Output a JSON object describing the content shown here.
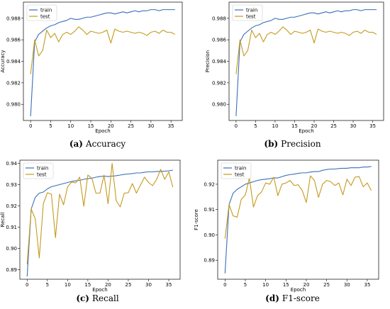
{
  "chart_data": [
    {
      "type": "line",
      "panel_label": "(a)",
      "caption": "Accuracy",
      "xlabel": "Epoch",
      "ylabel": "Accuracy",
      "xlim": [
        -1.8,
        37.8
      ],
      "ylim": [
        0.9785,
        0.9895
      ],
      "xticks": [
        0,
        5,
        10,
        15,
        20,
        25,
        30,
        35
      ],
      "yticks": [
        0.98,
        0.982,
        0.984,
        0.986,
        0.988
      ],
      "ytick_labels": [
        "0.980",
        "0.982",
        "0.984",
        "0.986",
        "0.988"
      ],
      "legend": "top-left",
      "grid": false,
      "x": [
        0,
        1,
        2,
        3,
        4,
        5,
        6,
        7,
        8,
        9,
        10,
        11,
        12,
        13,
        14,
        15,
        16,
        17,
        18,
        19,
        20,
        21,
        22,
        23,
        24,
        25,
        26,
        27,
        28,
        29,
        30,
        31,
        32,
        33,
        34,
        35,
        36
      ],
      "series": [
        {
          "name": "train",
          "color": "#3b6fb6",
          "values": [
            0.9789,
            0.9858,
            0.9865,
            0.9868,
            0.9871,
            0.9873,
            0.9874,
            0.9876,
            0.9877,
            0.9878,
            0.988,
            0.9879,
            0.9879,
            0.988,
            0.9881,
            0.9881,
            0.9882,
            0.9883,
            0.9884,
            0.9885,
            0.9885,
            0.9884,
            0.9885,
            0.9886,
            0.9885,
            0.9886,
            0.9887,
            0.9886,
            0.9887,
            0.9887,
            0.9888,
            0.9888,
            0.9887,
            0.9888,
            0.9888,
            0.9888,
            0.9888
          ]
        },
        {
          "name": "test",
          "color": "#c49a1f",
          "values": [
            0.9828,
            0.986,
            0.9845,
            0.985,
            0.9869,
            0.9862,
            0.9866,
            0.9858,
            0.9865,
            0.9867,
            0.9865,
            0.9868,
            0.9872,
            0.9869,
            0.9865,
            0.9868,
            0.9867,
            0.9866,
            0.9867,
            0.9869,
            0.9857,
            0.987,
            0.9868,
            0.9867,
            0.9868,
            0.9867,
            0.9866,
            0.9867,
            0.9866,
            0.9864,
            0.9867,
            0.9868,
            0.9866,
            0.9869,
            0.9867,
            0.9867,
            0.9865
          ]
        }
      ]
    },
    {
      "type": "line",
      "panel_label": "(b)",
      "caption": "Precision",
      "xlabel": "Epoch",
      "ylabel": "Precision",
      "xlim": [
        -1.8,
        37.8
      ],
      "ylim": [
        0.9785,
        0.9895
      ],
      "xticks": [
        0,
        5,
        10,
        15,
        20,
        25,
        30,
        35
      ],
      "yticks": [
        0.98,
        0.982,
        0.984,
        0.986,
        0.988
      ],
      "ytick_labels": [
        "0.980",
        "0.982",
        "0.984",
        "0.986",
        "0.988"
      ],
      "legend": "top-left",
      "grid": false,
      "x": [
        0,
        1,
        2,
        3,
        4,
        5,
        6,
        7,
        8,
        9,
        10,
        11,
        12,
        13,
        14,
        15,
        16,
        17,
        18,
        19,
        20,
        21,
        22,
        23,
        24,
        25,
        26,
        27,
        28,
        29,
        30,
        31,
        32,
        33,
        34,
        35,
        36
      ],
      "series": [
        {
          "name": "train",
          "color": "#3b6fb6",
          "values": [
            0.9789,
            0.9858,
            0.9865,
            0.9868,
            0.9871,
            0.9873,
            0.9874,
            0.9876,
            0.9877,
            0.9878,
            0.988,
            0.9879,
            0.9879,
            0.988,
            0.9881,
            0.9881,
            0.9882,
            0.9883,
            0.9884,
            0.9885,
            0.9885,
            0.9884,
            0.9885,
            0.9886,
            0.9885,
            0.9886,
            0.9887,
            0.9886,
            0.9887,
            0.9887,
            0.9888,
            0.9888,
            0.9887,
            0.9888,
            0.9888,
            0.9888,
            0.9888
          ]
        },
        {
          "name": "test",
          "color": "#c49a1f",
          "values": [
            0.9828,
            0.986,
            0.9845,
            0.985,
            0.9869,
            0.9862,
            0.9866,
            0.9858,
            0.9865,
            0.9867,
            0.9865,
            0.9868,
            0.9872,
            0.9869,
            0.9865,
            0.9868,
            0.9867,
            0.9866,
            0.9867,
            0.9869,
            0.9857,
            0.987,
            0.9868,
            0.9867,
            0.9868,
            0.9867,
            0.9866,
            0.9867,
            0.9866,
            0.9864,
            0.9867,
            0.9868,
            0.9866,
            0.9869,
            0.9867,
            0.9867,
            0.9865
          ]
        }
      ]
    },
    {
      "type": "line",
      "panel_label": "(c)",
      "caption": "Recall",
      "xlabel": "Epoch",
      "ylabel": "Recall",
      "xlim": [
        -1.8,
        37.8
      ],
      "ylim": [
        0.8855,
        0.9415
      ],
      "xticks": [
        0,
        5,
        10,
        15,
        20,
        25,
        30,
        35
      ],
      "yticks": [
        0.89,
        0.9,
        0.91,
        0.92,
        0.93,
        0.94
      ],
      "ytick_labels": [
        "0.89",
        "0.90",
        "0.91",
        "0.92",
        "0.93",
        "0.94"
      ],
      "legend": "top-left",
      "grid": false,
      "x": [
        0,
        1,
        2,
        3,
        4,
        5,
        6,
        7,
        8,
        9,
        10,
        11,
        12,
        13,
        14,
        15,
        16,
        17,
        18,
        19,
        20,
        21,
        22,
        23,
        24,
        25,
        26,
        27,
        28,
        29,
        30,
        31,
        32,
        33,
        34,
        35,
        36
      ],
      "series": [
        {
          "name": "train",
          "color": "#3b6fb6",
          "values": [
            0.8868,
            0.9185,
            0.924,
            0.926,
            0.9265,
            0.928,
            0.929,
            0.9295,
            0.93,
            0.9305,
            0.931,
            0.9315,
            0.9318,
            0.932,
            0.9325,
            0.9328,
            0.933,
            0.9335,
            0.9338,
            0.934,
            0.9338,
            0.934,
            0.9342,
            0.9345,
            0.9348,
            0.935,
            0.9352,
            0.9355,
            0.9355,
            0.9358,
            0.936,
            0.936,
            0.9362,
            0.9362,
            0.9363,
            0.9365,
            0.9368
          ]
        },
        {
          "name": "test",
          "color": "#c49a1f",
          "values": [
            0.8925,
            0.9185,
            0.914,
            0.8955,
            0.921,
            0.9262,
            0.9255,
            0.905,
            0.9255,
            0.9205,
            0.929,
            0.9312,
            0.9308,
            0.9335,
            0.9198,
            0.9345,
            0.933,
            0.926,
            0.926,
            0.9345,
            0.921,
            0.94,
            0.9225,
            0.9195,
            0.926,
            0.9262,
            0.9305,
            0.926,
            0.9298,
            0.9335,
            0.931,
            0.9295,
            0.9325,
            0.9372,
            0.9325,
            0.936,
            0.9288
          ]
        }
      ]
    },
    {
      "type": "line",
      "panel_label": "(d)",
      "caption": "F1-score",
      "xlabel": "Epoch",
      "ylabel": "F1-score",
      "xlim": [
        -1.8,
        37.8
      ],
      "ylim": [
        0.8825,
        0.9295
      ],
      "xticks": [
        0,
        5,
        10,
        15,
        20,
        25,
        30,
        35
      ],
      "yticks": [
        0.89,
        0.9,
        0.91,
        0.92
      ],
      "ytick_labels": [
        "0.89",
        "0.90",
        "0.91",
        "0.92"
      ],
      "legend": "top-left",
      "grid": false,
      "x": [
        0,
        1,
        2,
        3,
        4,
        5,
        6,
        7,
        8,
        9,
        10,
        11,
        12,
        13,
        14,
        15,
        16,
        17,
        18,
        19,
        20,
        21,
        22,
        23,
        24,
        25,
        26,
        27,
        28,
        29,
        30,
        31,
        32,
        33,
        34,
        35,
        36
      ],
      "series": [
        {
          "name": "train",
          "color": "#3b6fb6",
          "values": [
            0.8848,
            0.912,
            0.9165,
            0.918,
            0.919,
            0.92,
            0.9205,
            0.921,
            0.9215,
            0.9218,
            0.922,
            0.9222,
            0.9225,
            0.9225,
            0.923,
            0.9235,
            0.9238,
            0.924,
            0.9243,
            0.9245,
            0.9245,
            0.9248,
            0.925,
            0.925,
            0.9255,
            0.9258,
            0.926,
            0.926,
            0.9262,
            0.9263,
            0.9263,
            0.9265,
            0.9265,
            0.9265,
            0.9268,
            0.9268,
            0.927
          ]
        },
        {
          "name": "test",
          "color": "#c49a1f",
          "values": [
            0.8985,
            0.912,
            0.9075,
            0.907,
            0.914,
            0.9158,
            0.9225,
            0.911,
            0.9155,
            0.917,
            0.9205,
            0.92,
            0.9228,
            0.9155,
            0.92,
            0.9205,
            0.9215,
            0.9195,
            0.9198,
            0.9175,
            0.9128,
            0.9233,
            0.9215,
            0.9148,
            0.92,
            0.9215,
            0.921,
            0.9195,
            0.9205,
            0.9158,
            0.922,
            0.9195,
            0.9228,
            0.923,
            0.919,
            0.9205,
            0.9175
          ]
        }
      ]
    }
  ]
}
